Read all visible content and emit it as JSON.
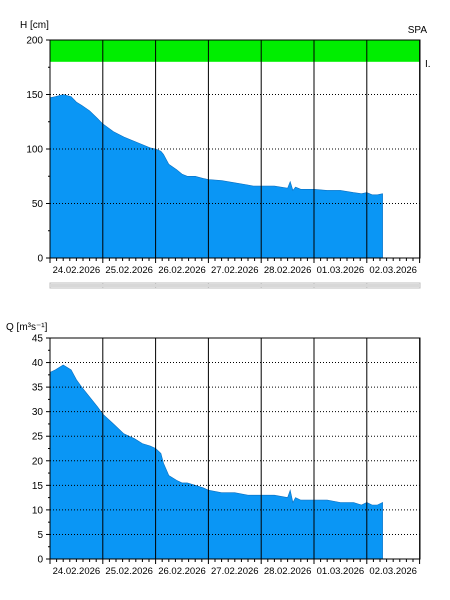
{
  "colors": {
    "fill": "#0a96f5",
    "band": "#00ee00",
    "grid": "#000000",
    "frame": "#000000",
    "scroll": "#d8d8d8"
  },
  "chart_data": [
    {
      "type": "area",
      "ylabel": "H [cm]",
      "corner_label": "SPA",
      "band_label": "I.",
      "ylim": [
        0,
        200
      ],
      "yticks": [
        0,
        50,
        100,
        150,
        200
      ],
      "band": [
        180,
        200
      ],
      "grid": true,
      "x_categories": [
        "24.02.2026",
        "25.02.2026",
        "26.02.2026",
        "27.02.2026",
        "28.02.2026",
        "01.03.2026",
        "02.03.2026"
      ],
      "x_day_start": "23.02.2026 23:00",
      "series": [
        {
          "x_days": [
            0,
            0.1,
            0.25,
            0.4,
            0.5,
            0.6,
            0.75,
            0.9,
            1.0,
            1.2,
            1.4,
            1.6,
            1.75,
            1.9,
            2.0,
            2.1,
            2.15,
            2.25,
            2.4,
            2.5,
            2.6,
            2.75,
            2.9,
            3.0,
            3.25,
            3.5,
            3.75,
            3.85,
            4.0,
            4.25,
            4.5,
            4.55,
            4.6,
            4.65,
            4.75,
            5.0,
            5.25,
            5.5,
            5.75,
            5.9,
            6.0,
            6.1,
            6.2,
            6.3
          ],
          "values": [
            147,
            148,
            150,
            148,
            143,
            140,
            135,
            128,
            123,
            116,
            111,
            107,
            104,
            101,
            100,
            98,
            95,
            86,
            81,
            77,
            75,
            75,
            73,
            72,
            71,
            69,
            67,
            66,
            66,
            66,
            64,
            70,
            62,
            65,
            63,
            63,
            62,
            62,
            60,
            59,
            60,
            58,
            58,
            59
          ]
        }
      ]
    },
    {
      "type": "area",
      "ylabel": "Q [m³s⁻¹]",
      "ylim": [
        0,
        45
      ],
      "yticks": [
        0,
        5,
        10,
        15,
        20,
        25,
        30,
        35,
        40,
        45
      ],
      "grid": true,
      "x_categories": [
        "24.02.2026",
        "25.02.2026",
        "26.02.2026",
        "27.02.2026",
        "28.02.2026",
        "01.03.2026",
        "02.03.2026"
      ],
      "x_day_start": "23.02.2026 23:00",
      "series": [
        {
          "x_days": [
            0,
            0.1,
            0.25,
            0.4,
            0.5,
            0.6,
            0.75,
            0.9,
            1.0,
            1.2,
            1.4,
            1.6,
            1.75,
            1.9,
            2.0,
            2.1,
            2.15,
            2.25,
            2.4,
            2.5,
            2.6,
            2.75,
            2.9,
            3.0,
            3.25,
            3.5,
            3.75,
            3.85,
            4.0,
            4.25,
            4.5,
            4.55,
            4.6,
            4.65,
            4.75,
            5.0,
            5.25,
            5.5,
            5.75,
            5.9,
            6.0,
            6.1,
            6.2,
            6.3
          ],
          "values": [
            38,
            38.5,
            39.5,
            38.5,
            36.5,
            35,
            33,
            31,
            29.5,
            27.5,
            25.5,
            24.5,
            23.5,
            23,
            22.5,
            21.5,
            19.5,
            17,
            16,
            15.5,
            15.5,
            15,
            14.5,
            14,
            13.5,
            13.5,
            13,
            13,
            13,
            13,
            12.5,
            14,
            11.5,
            12.5,
            12,
            12,
            12,
            11.5,
            11.5,
            11,
            11.5,
            11,
            11,
            11.5
          ]
        }
      ]
    }
  ]
}
